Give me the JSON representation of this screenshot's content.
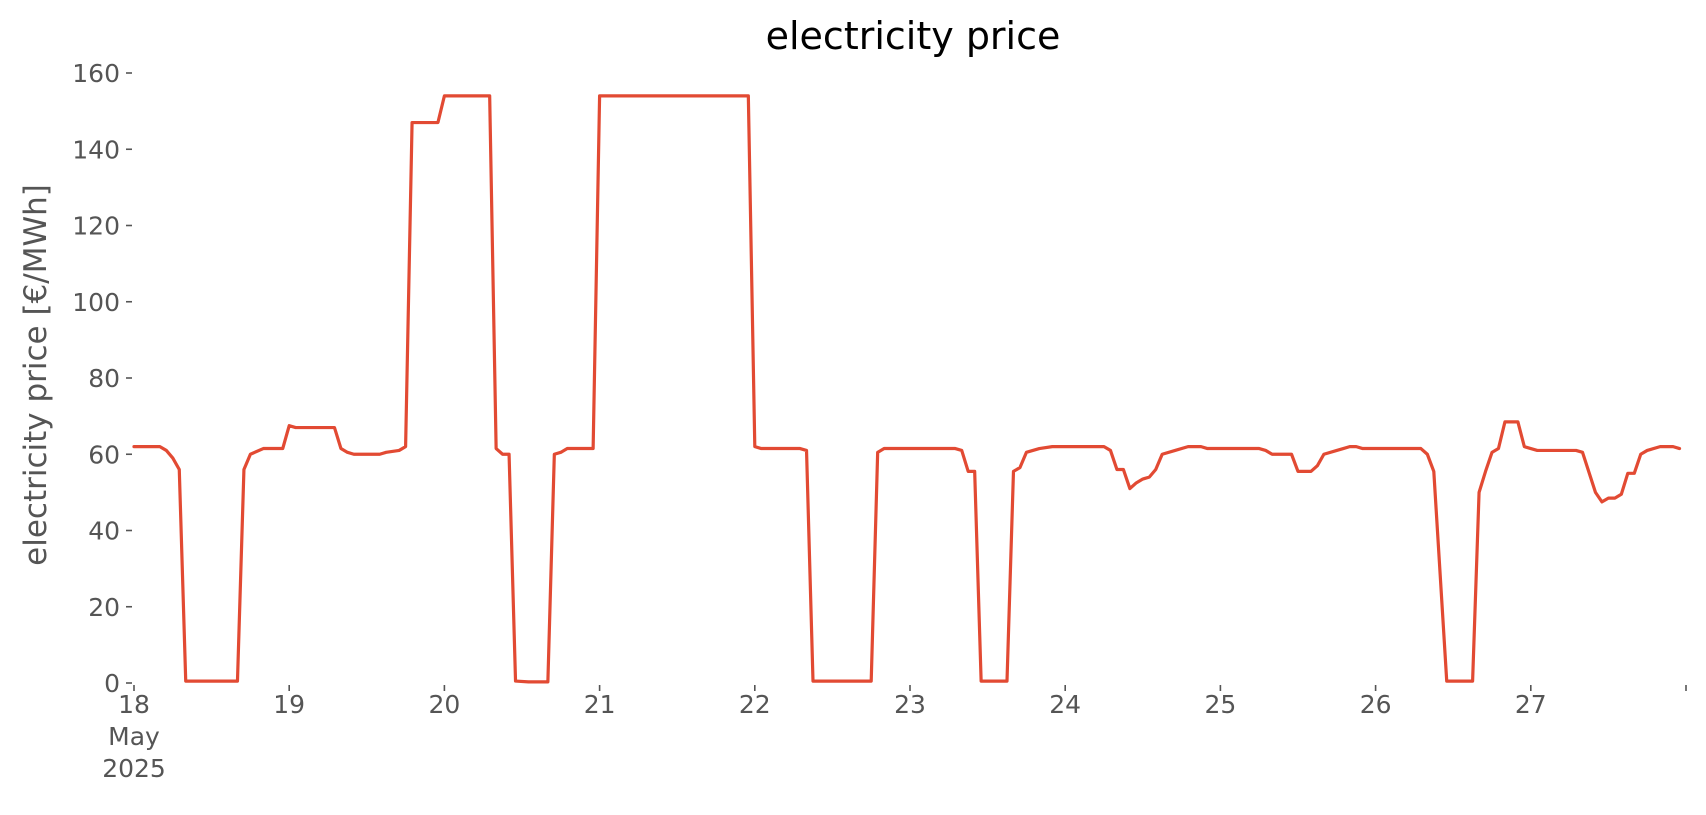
{
  "chart_data": {
    "type": "line",
    "title": "electricity price",
    "xlabel": "",
    "ylabel": "electricity price [€/MWh]",
    "ylim": [
      0,
      160
    ],
    "xlim": [
      "2025-05-18T00:00",
      "2025-05-28T00:00"
    ],
    "grid": false,
    "colors": {
      "series": "#E24A33",
      "text": "#555555"
    },
    "y_ticks": [
      0,
      20,
      40,
      60,
      80,
      100,
      120,
      140,
      160
    ],
    "x_ticks": [
      {
        "date": "2025-05-18",
        "lines": [
          "18",
          "May",
          "2025"
        ]
      },
      {
        "date": "2025-05-19",
        "lines": [
          "19"
        ]
      },
      {
        "date": "2025-05-20",
        "lines": [
          "20"
        ]
      },
      {
        "date": "2025-05-21",
        "lines": [
          "21"
        ]
      },
      {
        "date": "2025-05-22",
        "lines": [
          "22"
        ]
      },
      {
        "date": "2025-05-23",
        "lines": [
          "23"
        ]
      },
      {
        "date": "2025-05-24",
        "lines": [
          "24"
        ]
      },
      {
        "date": "2025-05-25",
        "lines": [
          "25"
        ]
      },
      {
        "date": "2025-05-26",
        "lines": [
          "26"
        ]
      },
      {
        "date": "2025-05-27",
        "lines": [
          "27"
        ]
      }
    ],
    "series": [
      {
        "points": [
          [
            "2025-05-18T00:00",
            62.0
          ],
          [
            "2025-05-18T04:00",
            62.0
          ],
          [
            "2025-05-18T05:00",
            61.0
          ],
          [
            "2025-05-18T06:00",
            59.0
          ],
          [
            "2025-05-18T07:00",
            56.0
          ],
          [
            "2025-05-18T08:00",
            0.5
          ],
          [
            "2025-05-18T16:00",
            0.5
          ],
          [
            "2025-05-18T17:00",
            56.0
          ],
          [
            "2025-05-18T18:00",
            60.0
          ],
          [
            "2025-05-18T20:00",
            61.5
          ],
          [
            "2025-05-18T23:00",
            61.5
          ],
          [
            "2025-05-19T00:00",
            67.5
          ],
          [
            "2025-05-19T01:00",
            67.0
          ],
          [
            "2025-05-19T07:00",
            67.0
          ],
          [
            "2025-05-19T08:00",
            61.5
          ],
          [
            "2025-05-19T09:00",
            60.5
          ],
          [
            "2025-05-19T10:00",
            60.0
          ],
          [
            "2025-05-19T14:00",
            60.0
          ],
          [
            "2025-05-19T15:00",
            60.5
          ],
          [
            "2025-05-19T17:00",
            61.0
          ],
          [
            "2025-05-19T18:00",
            62.0
          ],
          [
            "2025-05-19T19:00",
            147.0
          ],
          [
            "2025-05-19T23:00",
            147.0
          ],
          [
            "2025-05-20T00:00",
            154.0
          ],
          [
            "2025-05-20T07:00",
            154.0
          ],
          [
            "2025-05-20T08:00",
            61.5
          ],
          [
            "2025-05-20T09:00",
            60.0
          ],
          [
            "2025-05-20T10:00",
            60.0
          ],
          [
            "2025-05-20T11:00",
            0.5
          ],
          [
            "2025-05-20T13:00",
            0.3
          ],
          [
            "2025-05-20T16:00",
            0.3
          ],
          [
            "2025-05-20T17:00",
            60.0
          ],
          [
            "2025-05-20T18:00",
            60.5
          ],
          [
            "2025-05-20T19:00",
            61.5
          ],
          [
            "2025-05-20T23:00",
            61.5
          ],
          [
            "2025-05-21T00:00",
            154.0
          ],
          [
            "2025-05-21T23:00",
            154.0
          ],
          [
            "2025-05-22T00:00",
            62.0
          ],
          [
            "2025-05-22T01:00",
            61.5
          ],
          [
            "2025-05-22T07:00",
            61.5
          ],
          [
            "2025-05-22T08:00",
            61.0
          ],
          [
            "2025-05-22T09:00",
            0.5
          ],
          [
            "2025-05-22T18:00",
            0.5
          ],
          [
            "2025-05-22T19:00",
            60.5
          ],
          [
            "2025-05-22T20:00",
            61.5
          ],
          [
            "2025-05-23T07:00",
            61.5
          ],
          [
            "2025-05-23T08:00",
            61.0
          ],
          [
            "2025-05-23T09:00",
            55.5
          ],
          [
            "2025-05-23T10:00",
            55.5
          ],
          [
            "2025-05-23T11:00",
            0.5
          ],
          [
            "2025-05-23T15:00",
            0.5
          ],
          [
            "2025-05-23T16:00",
            55.5
          ],
          [
            "2025-05-23T17:00",
            56.5
          ],
          [
            "2025-05-23T18:00",
            60.5
          ],
          [
            "2025-05-23T20:00",
            61.5
          ],
          [
            "2025-05-23T22:00",
            62.0
          ],
          [
            "2025-05-24T06:00",
            62.0
          ],
          [
            "2025-05-24T07:00",
            61.0
          ],
          [
            "2025-05-24T08:00",
            56.0
          ],
          [
            "2025-05-24T09:00",
            56.0
          ],
          [
            "2025-05-24T10:00",
            51.0
          ],
          [
            "2025-05-24T11:00",
            52.5
          ],
          [
            "2025-05-24T12:00",
            53.5
          ],
          [
            "2025-05-24T13:00",
            54.0
          ],
          [
            "2025-05-24T14:00",
            56.0
          ],
          [
            "2025-05-24T15:00",
            60.0
          ],
          [
            "2025-05-24T17:00",
            61.0
          ],
          [
            "2025-05-24T19:00",
            62.0
          ],
          [
            "2025-05-24T21:00",
            62.0
          ],
          [
            "2025-05-24T22:00",
            61.5
          ],
          [
            "2025-05-25T06:00",
            61.5
          ],
          [
            "2025-05-25T07:00",
            61.0
          ],
          [
            "2025-05-25T08:00",
            60.0
          ],
          [
            "2025-05-25T11:00",
            60.0
          ],
          [
            "2025-05-25T12:00",
            55.5
          ],
          [
            "2025-05-25T14:00",
            55.5
          ],
          [
            "2025-05-25T15:00",
            57.0
          ],
          [
            "2025-05-25T16:00",
            60.0
          ],
          [
            "2025-05-25T18:00",
            61.0
          ],
          [
            "2025-05-25T19:00",
            61.5
          ],
          [
            "2025-05-25T20:00",
            62.0
          ],
          [
            "2025-05-25T21:00",
            62.0
          ],
          [
            "2025-05-25T22:00",
            61.5
          ],
          [
            "2025-05-26T07:00",
            61.5
          ],
          [
            "2025-05-26T08:00",
            60.0
          ],
          [
            "2025-05-26T09:00",
            55.5
          ],
          [
            "2025-05-26T11:00",
            0.5
          ],
          [
            "2025-05-26T15:00",
            0.5
          ],
          [
            "2025-05-26T16:00",
            50.0
          ],
          [
            "2025-05-26T17:00",
            55.5
          ],
          [
            "2025-05-26T18:00",
            60.5
          ],
          [
            "2025-05-26T19:00",
            61.5
          ],
          [
            "2025-05-26T20:00",
            68.5
          ],
          [
            "2025-05-26T22:00",
            68.5
          ],
          [
            "2025-05-26T23:00",
            62.0
          ],
          [
            "2025-05-27T00:00",
            61.5
          ],
          [
            "2025-05-27T01:00",
            61.0
          ],
          [
            "2025-05-27T07:00",
            61.0
          ],
          [
            "2025-05-27T08:00",
            60.5
          ],
          [
            "2025-05-27T10:00",
            50.0
          ],
          [
            "2025-05-27T11:00",
            47.5
          ],
          [
            "2025-05-27T12:00",
            48.5
          ],
          [
            "2025-05-27T13:00",
            48.5
          ],
          [
            "2025-05-27T14:00",
            49.5
          ],
          [
            "2025-05-27T15:00",
            55.0
          ],
          [
            "2025-05-27T16:00",
            55.0
          ],
          [
            "2025-05-27T17:00",
            60.0
          ],
          [
            "2025-05-27T18:00",
            61.0
          ],
          [
            "2025-05-27T20:00",
            62.0
          ],
          [
            "2025-05-27T22:00",
            62.0
          ],
          [
            "2025-05-27T23:00",
            61.5
          ]
        ]
      }
    ]
  }
}
